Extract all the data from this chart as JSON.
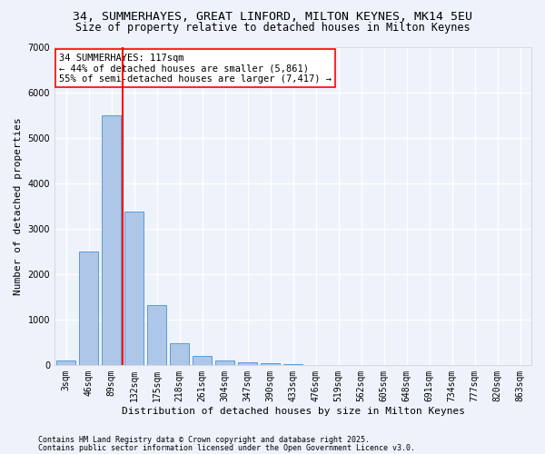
{
  "title1": "34, SUMMERHAYES, GREAT LINFORD, MILTON KEYNES, MK14 5EU",
  "title2": "Size of property relative to detached houses in Milton Keynes",
  "xlabel": "Distribution of detached houses by size in Milton Keynes",
  "ylabel": "Number of detached properties",
  "categories": [
    "3sqm",
    "46sqm",
    "89sqm",
    "132sqm",
    "175sqm",
    "218sqm",
    "261sqm",
    "304sqm",
    "347sqm",
    "390sqm",
    "433sqm",
    "476sqm",
    "519sqm",
    "562sqm",
    "605sqm",
    "648sqm",
    "691sqm",
    "734sqm",
    "777sqm",
    "820sqm",
    "863sqm"
  ],
  "values": [
    100,
    2500,
    5500,
    3380,
    1320,
    470,
    195,
    100,
    55,
    30,
    10,
    5,
    2,
    1,
    1,
    0,
    0,
    0,
    0,
    0,
    0
  ],
  "bar_color": "#aec6e8",
  "bar_edge_color": "#5b9bd5",
  "vline_color": "red",
  "vline_x_index": 2.5,
  "annotation_text": "34 SUMMERHAYES: 117sqm\n← 44% of detached houses are smaller (5,861)\n55% of semi-detached houses are larger (7,417) →",
  "annotation_box_color": "white",
  "annotation_box_edge": "red",
  "ylim": [
    0,
    7000
  ],
  "yticks": [
    0,
    1000,
    2000,
    3000,
    4000,
    5000,
    6000,
    7000
  ],
  "footer1": "Contains HM Land Registry data © Crown copyright and database right 2025.",
  "footer2": "Contains public sector information licensed under the Open Government Licence v3.0.",
  "bg_color": "#eef2fb",
  "grid_color": "#ffffff",
  "title_fontsize": 9.5,
  "subtitle_fontsize": 8.5,
  "axis_label_fontsize": 8,
  "tick_fontsize": 7,
  "annotation_fontsize": 7.5,
  "footer_fontsize": 6
}
